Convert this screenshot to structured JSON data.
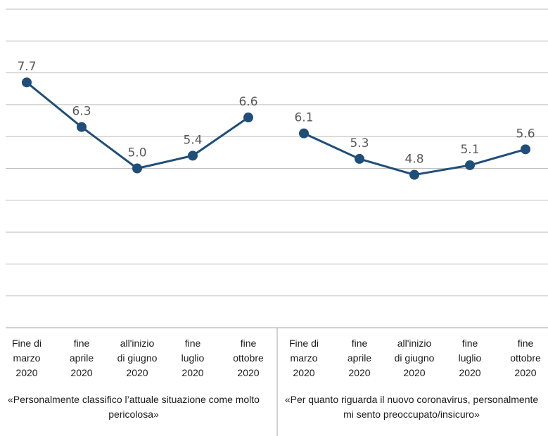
{
  "chart_data": {
    "type": "line",
    "ylim": [
      0,
      10
    ],
    "grid": true,
    "colors": {
      "line": "#1f4e79",
      "grid": "#bfbfbf",
      "text": "#595959"
    },
    "panels": [
      {
        "categories": [
          "Fine di\nmarzo\n2020",
          "fine\naprile\n2020",
          "all'inizio\ndi giugno\n2020",
          "fine\nluglio\n2020",
          "fine\nottobre\n2020"
        ],
        "values": [
          7.7,
          6.3,
          5.0,
          5.4,
          6.6
        ],
        "labels": [
          "7.7",
          "6.3",
          "5.0",
          "5.4",
          "6.6"
        ],
        "caption": "«Personalmente classifico l’attuale situazione come molto pericolosa»"
      },
      {
        "categories": [
          "Fine di\nmarzo\n2020",
          "fine\naprile\n2020",
          "all'inizio\ndi giugno\n2020",
          "fine\nluglio\n2020",
          "fine\nottobre\n2020"
        ],
        "values": [
          6.1,
          5.3,
          4.8,
          5.1,
          5.6
        ],
        "labels": [
          "6.1",
          "5.3",
          "4.8",
          "5.1",
          "5.6"
        ],
        "caption": "«Per quanto riguarda il nuovo coronavirus, personalmente mi sento preoccupato/insicuro»"
      }
    ]
  }
}
